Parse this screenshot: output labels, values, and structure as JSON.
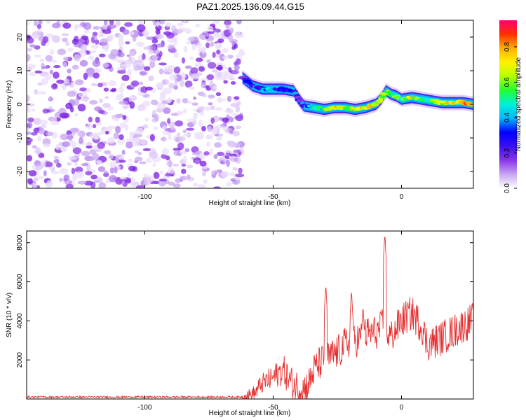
{
  "title": "PAZ1.2025.136.09.44.G15",
  "colors": {
    "snr_line": "#e53030",
    "axis": "#000000",
    "spectrogram_noise": "#7a1ce0",
    "spectrogram_colormap": [
      "#ffffff",
      "#c7a6f2",
      "#8a35e6",
      "#3a10f0",
      "#0000ff",
      "#00b8ff",
      "#00f0d8",
      "#20ff30",
      "#b4ff00",
      "#fff200",
      "#ffb000",
      "#ff3000",
      "#ff0070"
    ]
  },
  "chart_data": [
    {
      "type": "heatmap",
      "name": "spectrogram",
      "xlabel": "Height of straight line (km)",
      "ylabel": "Frequency (Hz)",
      "xlim": [
        -146,
        28
      ],
      "ylim": [
        -25,
        25
      ],
      "x_ticks": [
        -100,
        -50,
        0
      ],
      "y_ticks": [
        -20,
        -10,
        0,
        10,
        20
      ],
      "noise_region_x": [
        -146,
        -62
      ],
      "signal_ridge": {
        "x": [
          -62,
          -58,
          -54,
          -50,
          -46,
          -42,
          -40,
          -38,
          -34,
          -30,
          -26,
          -22,
          -18,
          -14,
          -10,
          -8,
          -6,
          -4,
          -2,
          0,
          4,
          8,
          12,
          16,
          20,
          24,
          28
        ],
        "hz": [
          8,
          5.5,
          4.5,
          4.5,
          4.5,
          4,
          1.5,
          -0.5,
          -1,
          -1.5,
          -1,
          -1,
          -1.5,
          -1,
          0,
          1.5,
          4,
          3,
          2.5,
          1.5,
          2,
          1.5,
          1,
          0.5,
          0.5,
          0.5,
          0
        ],
        "amp": [
          0.2,
          0.3,
          0.35,
          0.35,
          0.3,
          0.3,
          0.3,
          0.35,
          0.45,
          0.55,
          0.7,
          0.6,
          0.75,
          0.8,
          0.75,
          0.6,
          0.55,
          0.5,
          0.6,
          0.65,
          0.7,
          0.55,
          0.6,
          0.7,
          0.75,
          0.8,
          0.85
        ]
      },
      "colorbar": {
        "label": "Normalized spectral amplitude",
        "range": [
          0,
          0.95
        ],
        "ticks": [
          "0.0",
          "0.2",
          "0.4",
          "0.6",
          "0.8"
        ]
      }
    },
    {
      "type": "line",
      "name": "snr",
      "xlabel": "Height of straight line (km)",
      "ylabel": "SNR (10 * v/v)",
      "xlim": [
        -146,
        28
      ],
      "ylim": [
        0,
        8600
      ],
      "x_ticks": [
        -100,
        -50,
        0
      ],
      "y_ticks": [
        2000,
        4000,
        6000,
        8000
      ],
      "profile": {
        "x": [
          -146,
          -62,
          -60,
          -57,
          -55,
          -53,
          -51,
          -48,
          -46,
          -44,
          -42,
          -40,
          -38,
          -36,
          -34,
          -32,
          -30,
          -28,
          -26,
          -24,
          -22,
          -20,
          -18,
          -16,
          -14,
          -12,
          -10,
          -8,
          -7,
          -6,
          -5,
          -4,
          -2,
          0,
          4,
          8,
          10,
          14,
          18,
          22,
          26,
          28
        ],
        "y": [
          100,
          100,
          150,
          300,
          700,
          900,
          1000,
          1300,
          1500,
          1000,
          700,
          600,
          500,
          800,
          1500,
          1800,
          2000,
          2100,
          2300,
          2500,
          2800,
          3000,
          3000,
          3100,
          3300,
          3400,
          3400,
          3600,
          4000,
          3400,
          3300,
          3200,
          3600,
          4000,
          4400,
          3700,
          2800,
          3000,
          3300,
          3600,
          3900,
          4100
        ]
      },
      "noise_amplitude": [
        50,
        1500
      ],
      "peaks": [
        {
          "x": -29.5,
          "y": 5900
        },
        {
          "x": -19.5,
          "y": 5600
        },
        {
          "x": -15,
          "y": 4800
        },
        {
          "x": -6.5,
          "y": 8500
        }
      ]
    }
  ]
}
